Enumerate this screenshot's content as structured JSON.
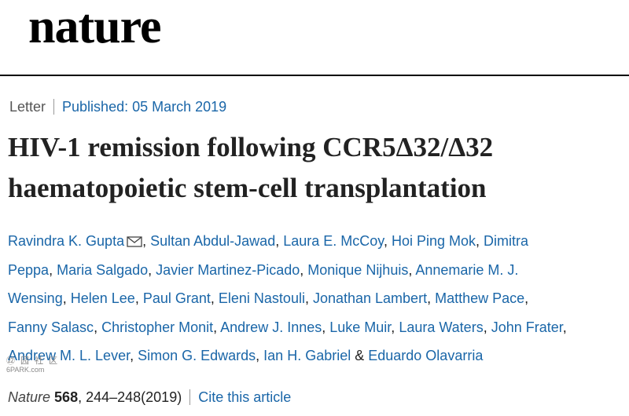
{
  "header": {
    "logo_text": "nature"
  },
  "article_meta": {
    "type": "Letter",
    "published": "Published: 05 March 2019"
  },
  "title_lines": [
    "HIV-1 remission following CCR5Δ32/Δ32",
    "haematopoietic stem-cell transplantation"
  ],
  "authors": [
    "Ravindra K. Gupta",
    "Sultan Abdul-Jawad",
    "Laura E. McCoy",
    "Hoi Ping Mok",
    "Dimitra",
    "Peppa",
    "Maria Salgado",
    "Javier Martinez-Picado",
    "Monique Nijhuis",
    "Annemarie M. J.",
    "Wensing",
    "Helen Lee",
    "Paul Grant",
    "Eleni Nastouli",
    "Jonathan Lambert",
    "Matthew Pace",
    "Fanny Salasc",
    "Christopher Monit",
    "Andrew J. Innes",
    "Luke Muir",
    "Laura Waters",
    "John Frater",
    "Andrew M. L. Lever",
    "Simon G. Edwards",
    "Ian H. Gabriel",
    "Eduardo Olavarria"
  ],
  "citation": {
    "journal": "Nature",
    "volume": "568",
    "pages_year": ", 244–248(2019)",
    "cite_link": "Cite this article"
  },
  "watermark": {
    "glyphs": "㉒ 园 社 区",
    "text": "6PARK.com"
  },
  "colors": {
    "link": "#1a66a8",
    "text": "#222222",
    "rule": "#000000"
  },
  "icons": {
    "corresponding_author": "envelope-icon"
  }
}
